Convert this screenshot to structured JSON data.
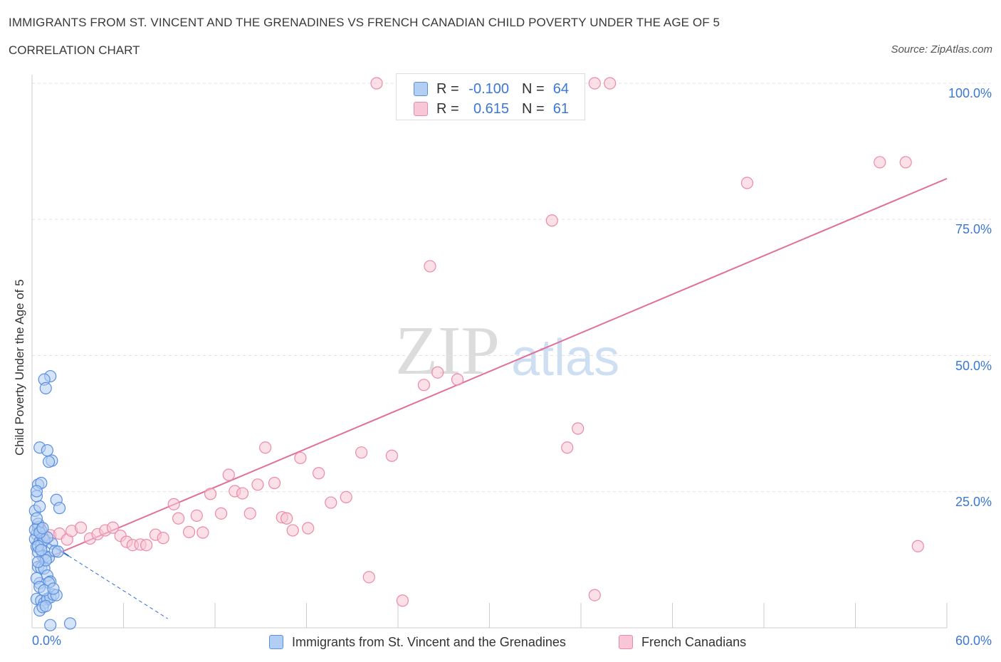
{
  "header": {
    "title": "IMMIGRANTS FROM ST. VINCENT AND THE GRENADINES VS FRENCH CANADIAN CHILD POVERTY UNDER THE AGE OF 5",
    "subtitle": "CORRELATION CHART",
    "source": "Source: ZipAtlas.com"
  },
  "watermark": {
    "zip": "ZIP",
    "atlas": "atlas"
  },
  "legend": {
    "rows": [
      {
        "r_label": "R =",
        "r_value": "-0.100",
        "n_label": "N =",
        "n_value": "64"
      },
      {
        "r_label": "R =",
        "r_value": "0.615",
        "n_label": "N =",
        "n_value": "61"
      }
    ]
  },
  "bottom_legend": {
    "series1": "Immigrants from St. Vincent and the Grenadines",
    "series2": "French Canadians"
  },
  "colors": {
    "blue_fill": "#b3cef3",
    "blue_stroke": "#5a8fe0",
    "blue_line": "#2f6fd6",
    "pink_fill": "#f8c6d6",
    "pink_stroke": "#ec89a9",
    "pink_line": "#e0709a",
    "axis_label": "#3a78d4",
    "grid": "#e0e0e0"
  },
  "chart_data": {
    "type": "scatter",
    "xlabel": "",
    "ylabel": "Child Poverty Under the Age of 5",
    "xlim": [
      0,
      60
    ],
    "ylim": [
      0,
      100
    ],
    "x_tick_labels": [
      "0.0%",
      "60.0%"
    ],
    "y_tick_values": [
      25,
      50,
      75,
      100
    ],
    "y_tick_labels": [
      "25.0%",
      "50.0%",
      "75.0%",
      "100.0%"
    ],
    "grid": true,
    "series": [
      {
        "name": "Immigrants from St. Vincent and the Grenadines",
        "color": "#5a8fe0",
        "points": [
          [
            0.3,
            17.2
          ],
          [
            0.4,
            18.5
          ],
          [
            0.2,
            16.3
          ],
          [
            0.5,
            15.8
          ],
          [
            0.6,
            17.9
          ],
          [
            0.3,
            14.9
          ],
          [
            0.7,
            16.6
          ],
          [
            0.4,
            19.1
          ],
          [
            0.2,
            21.5
          ],
          [
            0.5,
            22.3
          ],
          [
            0.3,
            24.2
          ],
          [
            0.4,
            26.3
          ],
          [
            0.6,
            26.6
          ],
          [
            0.3,
            25.1
          ],
          [
            0.5,
            33.1
          ],
          [
            1.0,
            32.6
          ],
          [
            1.3,
            30.7
          ],
          [
            1.1,
            30.5
          ],
          [
            1.2,
            46.2
          ],
          [
            0.8,
            45.6
          ],
          [
            0.9,
            44.0
          ],
          [
            1.6,
            23.5
          ],
          [
            1.8,
            22.0
          ],
          [
            0.4,
            11.2
          ],
          [
            0.6,
            11.0
          ],
          [
            0.8,
            10.9
          ],
          [
            1.0,
            9.6
          ],
          [
            1.2,
            8.5
          ],
          [
            0.5,
            8.2
          ],
          [
            0.7,
            13.2
          ],
          [
            0.9,
            13.1
          ],
          [
            1.1,
            12.9
          ],
          [
            1.3,
            15.5
          ],
          [
            1.5,
            14.1
          ],
          [
            1.7,
            14.0
          ],
          [
            0.3,
            5.3
          ],
          [
            0.6,
            5.0
          ],
          [
            0.8,
            4.6
          ],
          [
            1.0,
            5.3
          ],
          [
            1.2,
            5.6
          ],
          [
            1.4,
            6.1
          ],
          [
            1.6,
            6.0
          ],
          [
            0.5,
            3.2
          ],
          [
            0.7,
            3.8
          ],
          [
            0.9,
            4.0
          ],
          [
            1.2,
            0.5
          ],
          [
            2.5,
            0.8
          ],
          [
            0.4,
            13.9
          ],
          [
            0.6,
            15.2
          ],
          [
            0.8,
            16.1
          ],
          [
            1.0,
            16.6
          ],
          [
            0.2,
            18.0
          ],
          [
            0.3,
            20.1
          ],
          [
            0.5,
            17.5
          ],
          [
            0.7,
            18.3
          ],
          [
            0.4,
            15.0
          ],
          [
            0.6,
            14.3
          ],
          [
            0.9,
            12.4
          ],
          [
            1.1,
            8.3
          ],
          [
            0.3,
            9.1
          ],
          [
            0.5,
            7.5
          ],
          [
            0.8,
            6.9
          ],
          [
            0.4,
            12.1
          ],
          [
            1.4,
            7.2
          ]
        ]
      },
      {
        "name": "French Canadians",
        "color": "#ec89a9",
        "points": [
          [
            0.5,
            18.5
          ],
          [
            0.8,
            16.8
          ],
          [
            1.2,
            17.0
          ],
          [
            1.8,
            17.3
          ],
          [
            2.3,
            16.2
          ],
          [
            2.6,
            17.8
          ],
          [
            3.2,
            18.4
          ],
          [
            3.8,
            16.4
          ],
          [
            4.3,
            17.2
          ],
          [
            4.8,
            17.9
          ],
          [
            5.3,
            18.4
          ],
          [
            5.8,
            16.9
          ],
          [
            6.2,
            15.8
          ],
          [
            6.6,
            15.2
          ],
          [
            7.1,
            15.3
          ],
          [
            7.5,
            15.2
          ],
          [
            8.1,
            17.1
          ],
          [
            8.6,
            16.5
          ],
          [
            9.3,
            22.7
          ],
          [
            9.6,
            20.1
          ],
          [
            10.3,
            17.6
          ],
          [
            10.8,
            20.6
          ],
          [
            11.2,
            17.5
          ],
          [
            11.7,
            24.6
          ],
          [
            12.4,
            21.0
          ],
          [
            12.9,
            28.1
          ],
          [
            13.3,
            25.1
          ],
          [
            13.8,
            24.7
          ],
          [
            14.3,
            21.0
          ],
          [
            14.8,
            26.3
          ],
          [
            15.3,
            33.1
          ],
          [
            15.9,
            26.6
          ],
          [
            16.4,
            20.3
          ],
          [
            16.7,
            20.1
          ],
          [
            17.1,
            17.9
          ],
          [
            17.6,
            31.2
          ],
          [
            18.1,
            18.3
          ],
          [
            18.8,
            28.4
          ],
          [
            19.6,
            23.0
          ],
          [
            20.6,
            24.0
          ],
          [
            21.6,
            32.2
          ],
          [
            22.1,
            9.3
          ],
          [
            23.6,
            31.6
          ],
          [
            24.3,
            5.0
          ],
          [
            25.7,
            44.6
          ],
          [
            26.1,
            66.4
          ],
          [
            26.6,
            46.9
          ],
          [
            27.9,
            45.6
          ],
          [
            34.1,
            74.8
          ],
          [
            35.1,
            33.1
          ],
          [
            35.8,
            36.6
          ],
          [
            36.9,
            6.0
          ],
          [
            46.9,
            81.7
          ],
          [
            55.6,
            85.5
          ],
          [
            57.3,
            85.5
          ],
          [
            58.1,
            15.0
          ],
          [
            22.6,
            100
          ],
          [
            25.7,
            100
          ],
          [
            28.6,
            100
          ],
          [
            36.9,
            100
          ],
          [
            37.9,
            100
          ]
        ]
      }
    ],
    "trend_lines": [
      {
        "series": "Immigrants from St. Vincent and the Grenadines",
        "x": [
          0.2,
          2.4
        ],
        "y": [
          17.1,
          13.2
        ],
        "dashed_extension_to_x": 8.9
      },
      {
        "series": "French Canadians",
        "x": [
          0.2,
          60.0
        ],
        "y": [
          11.9,
          82.5
        ]
      }
    ]
  }
}
